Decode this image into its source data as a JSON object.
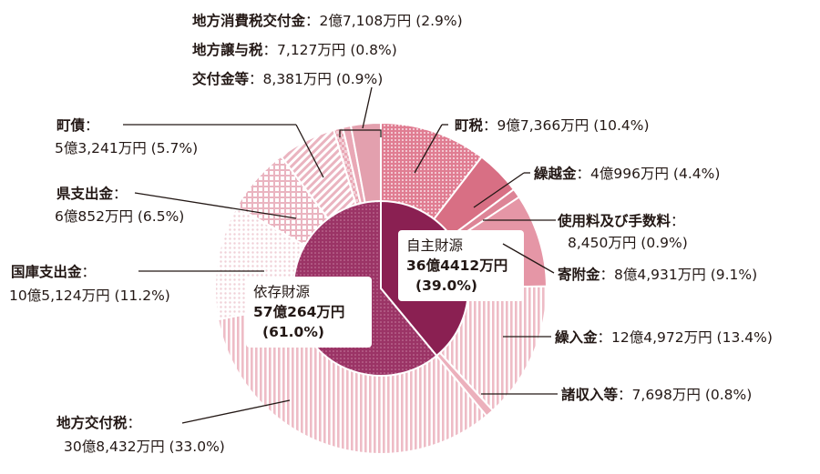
{
  "chart_data": {
    "type": "pie",
    "series": [
      {
        "name": "町税",
        "value": "9億7,366万円",
        "percent": 10.4,
        "color": "#c8566c"
      },
      {
        "name": "繰越金",
        "value": "4億996万円",
        "percent": 4.4,
        "color": "#d86f84"
      },
      {
        "name": "使用料及び手数料",
        "value": "8,450万円",
        "percent": 0.9,
        "color": "#dd8496"
      },
      {
        "name": "寄附金",
        "value": "8億4,931万円",
        "percent": 9.1,
        "color": "#e596a6"
      },
      {
        "name": "繰入金",
        "value": "12億4,972万円",
        "percent": 13.4,
        "color": "#eebcc6"
      },
      {
        "name": "諸収入等",
        "value": "7,698万円",
        "percent": 0.8,
        "color": "#ecb0bc"
      },
      {
        "name": "地方交付税",
        "value": "30億8,432万円",
        "percent": 33.0,
        "color": "#f4d6dc"
      },
      {
        "name": "国庫支出金",
        "value": "10億5,124万円",
        "percent": 11.2,
        "color": "#f8e6ea"
      },
      {
        "name": "県支出金",
        "value": "6億852万円",
        "percent": 6.5,
        "color": "#f0c9d1"
      },
      {
        "name": "町債",
        "value": "5億3,241万円",
        "percent": 5.7,
        "color": "#ecbac4"
      },
      {
        "name": "交付金等",
        "value": "8,381万円",
        "percent": 0.9,
        "color": "#eab0bc"
      },
      {
        "name": "地方譲与税",
        "value": "7,127万円",
        "percent": 0.8,
        "color": "#e9a8b6"
      },
      {
        "name": "地方消費税交付金",
        "value": "2億7,108万円",
        "percent": 2.9,
        "color": "#e3a0ae"
      }
    ],
    "groups": [
      {
        "name": "自主財源",
        "value": "36億4412万円",
        "percent_label": "(39.0%)",
        "color": "#8a2052"
      },
      {
        "name": "依存財源",
        "value": "57億264万円",
        "percent_label": "(61.0%)",
        "color": "#a03868"
      }
    ]
  },
  "labels": {
    "chozei": {
      "name": "町税",
      "value": "9億7,366万円 (10.4%)"
    },
    "kurikoshi": {
      "name": "繰越金",
      "value": "4億996万円 (4.4%)"
    },
    "shiyoryo_name": "使用料及び手数料",
    "shiyoryo_value": "8,450万円 (0.9%)",
    "kifu": {
      "name": "寄附金",
      "value": "8億4,931万円 (9.1%)"
    },
    "kurire": {
      "name": "繰入金",
      "value": "12億4,972万円 (13.4%)"
    },
    "shoshunyu": {
      "name": "諸収入等",
      "value": "7,698万円 (0.8%)"
    },
    "kofuzei_name": "地方交付税",
    "kofuzei_value": "30億8,432万円 (33.0%)",
    "kokko_name": "国庫支出金",
    "kokko_value": "10億5,124万円 (11.2%)",
    "ken_name": "県支出金",
    "ken_value": "6億852万円 (6.5%)",
    "chosai_name": "町債",
    "chosai_value": "5億3,241万円 (5.7%)",
    "shohi": {
      "name": "地方消費税交付金",
      "value": "2億7,108万円 (2.9%)"
    },
    "joyo": {
      "name": "地方譲与税",
      "value": "7,127万円 (0.8%)"
    },
    "kofukin": {
      "name": "交付金等",
      "value": "8,381万円 (0.9%)"
    },
    "colon": "："
  }
}
